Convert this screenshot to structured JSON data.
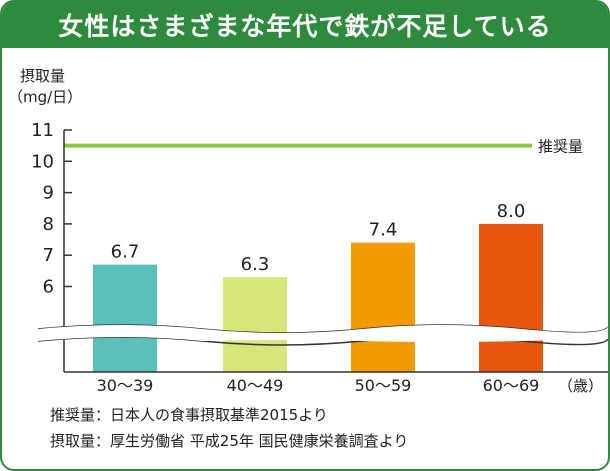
{
  "colors": {
    "brand": "#2e8b3e",
    "recommended_line": "#8cc63f",
    "bars": [
      "#5bbfba",
      "#d9e57a",
      "#f39a00",
      "#e8570e"
    ]
  },
  "chart_data": {
    "type": "bar",
    "title": "女性はさまざまな年代で鉄が不足している",
    "ylabel_line1": "摂取量",
    "ylabel_line2": "（mg/日）",
    "categories": [
      "30～39",
      "40～49",
      "50～59",
      "60～69"
    ],
    "x_unit": "（歳）",
    "values": [
      6.7,
      6.3,
      7.4,
      8.0
    ],
    "value_labels": [
      "6.7",
      "6.3",
      "7.4",
      "8.0"
    ],
    "y_ticks": [
      "11",
      "10",
      "9",
      "8",
      "7",
      "6"
    ],
    "ylim": [
      5,
      11
    ],
    "axis_break": true,
    "reference_line": {
      "value": 10.5,
      "label": "推奨量"
    },
    "grid": false
  },
  "footnotes": [
    "推奨量：日本人の食事摂取基準2015より",
    "摂取量：厚生労働省 平成25年 国民健康栄養調査より"
  ]
}
